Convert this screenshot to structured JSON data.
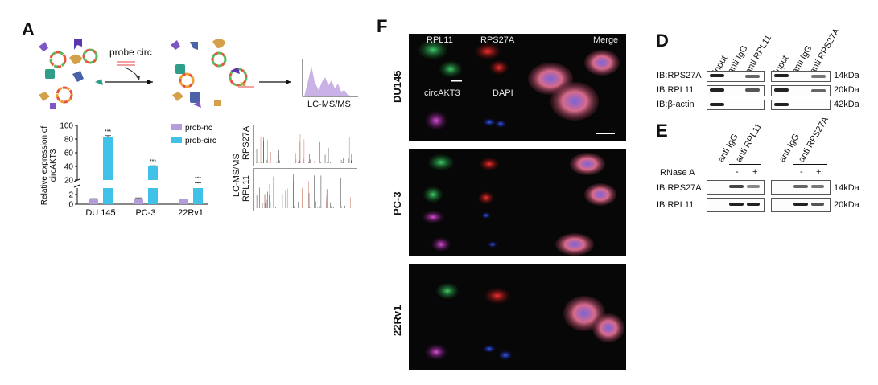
{
  "panel_labels": {
    "a": "A",
    "f": "F",
    "d": "D",
    "e": "E"
  },
  "panelA": {
    "probe_label": "probe circ",
    "ms_label": "LC-MS/MS",
    "spectra_axis_label": "LC-MS/MS",
    "spectra_labels": [
      "RPS27A",
      "RPL11"
    ]
  },
  "chart_data": {
    "type": "bar",
    "categories": [
      "DU 145",
      "PC-3",
      "22Rv1"
    ],
    "series": [
      {
        "name": "prob-nc",
        "values": [
          1.0,
          1.0,
          1.0
        ],
        "errors": [
          0.15,
          0.3,
          0.1
        ],
        "color": "#b39ddb"
      },
      {
        "name": "prob-circ",
        "values": [
          83,
          40,
          15
        ],
        "errors": [
          2.0,
          1.0,
          1.0
        ],
        "color": "#3fc1e8"
      }
    ],
    "significance": [
      "***",
      "***",
      "***"
    ],
    "ylabel": "Relative expression of circAKT3",
    "y_ticks_upper": [
      20,
      40,
      60,
      80,
      100
    ],
    "y_ticks_lower": [
      0,
      2
    ],
    "ylim": [
      0,
      100
    ],
    "legend_position": "right"
  },
  "panelF": {
    "row_labels": [
      "DU145",
      "PC-3",
      "22Rv1"
    ],
    "channel_labels": {
      "rpl11": "RPL11",
      "rps27a": "RPS27A",
      "merge": "Merge",
      "circ": "circAKT3",
      "dapi": "DAPI"
    }
  },
  "panelD": {
    "lanes_left": [
      "input",
      "anti IgG",
      "anti RPL11"
    ],
    "lanes_right": [
      "input",
      "anti IgG",
      "anti RPS27A"
    ],
    "rows": [
      {
        "ib": "IB:RPS27A",
        "kda": "14kDa"
      },
      {
        "ib": "IB:RPL11",
        "kda": "20kDa"
      },
      {
        "ib": "IB:β-actin",
        "kda": "42kDa"
      }
    ]
  },
  "panelE": {
    "lanes_left": [
      "anti IgG",
      "anti RPL11"
    ],
    "lanes_right": [
      "anti IgG",
      "anti RPS27A"
    ],
    "rnase_label": "RNase A",
    "minus": "-",
    "plus": "+",
    "rows": [
      {
        "ib": "IB:RPS27A",
        "kda": "14kDa"
      },
      {
        "ib": "IB:RPL11",
        "kda": "20kDa"
      }
    ]
  },
  "colors": {
    "prob_nc": "#b39ddb",
    "prob_circ": "#3fc1e8",
    "spectrum_fill": "#c9b3e6"
  }
}
